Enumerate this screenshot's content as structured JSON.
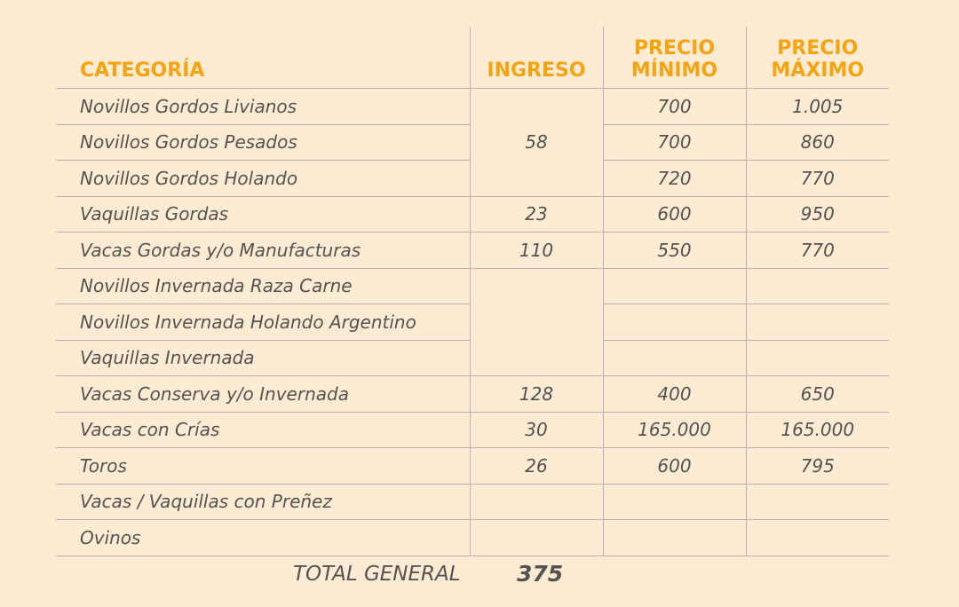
{
  "header": {
    "categoria": "CATEGORÍA",
    "ingreso": "INGRESO",
    "precio_minimo_l1": "PRECIO",
    "precio_minimo_l2": "MÍNIMO",
    "precio_maximo_l1": "PRECIO",
    "precio_maximo_l2": "MÁXIMO"
  },
  "rows": [
    {
      "categoria": "Novillos Gordos Livianos",
      "minimo": "700",
      "maximo": "1.005"
    },
    {
      "categoria": "Novillos Gordos Pesados",
      "minimo": "700",
      "maximo": "860"
    },
    {
      "categoria": "Novillos Gordos Holando",
      "minimo": "720",
      "maximo": "770"
    },
    {
      "categoria": "Vaquillas Gordas",
      "ingreso": "23",
      "minimo": "600",
      "maximo": "950"
    },
    {
      "categoria": "Vacas Gordas y/o Manufacturas",
      "ingreso": "110",
      "minimo": "550",
      "maximo": "770"
    },
    {
      "categoria": "Novillos Invernada Raza Carne",
      "minimo": "",
      "maximo": ""
    },
    {
      "categoria": "Novillos Invernada Holando Argentino",
      "minimo": "",
      "maximo": ""
    },
    {
      "categoria": "Vaquillas Invernada",
      "minimo": "",
      "maximo": ""
    },
    {
      "categoria": "Vacas Conserva y/o Invernada",
      "ingreso": "128",
      "minimo": "400",
      "maximo": "650"
    },
    {
      "categoria": "Vacas con Crías",
      "ingreso": "30",
      "minimo": "165.000",
      "maximo": "165.000"
    },
    {
      "categoria": "Toros",
      "ingreso": "26",
      "minimo": "600",
      "maximo": "795"
    },
    {
      "categoria": "Vacas / Vaquillas con Preñez",
      "ingreso": "",
      "minimo": "",
      "maximo": ""
    },
    {
      "categoria": "Ovinos",
      "ingreso": "",
      "minimo": "",
      "maximo": ""
    }
  ],
  "group_ingreso_novillos_gordos": "58",
  "total": {
    "label": "TOTAL GENERAL",
    "value": "375"
  }
}
